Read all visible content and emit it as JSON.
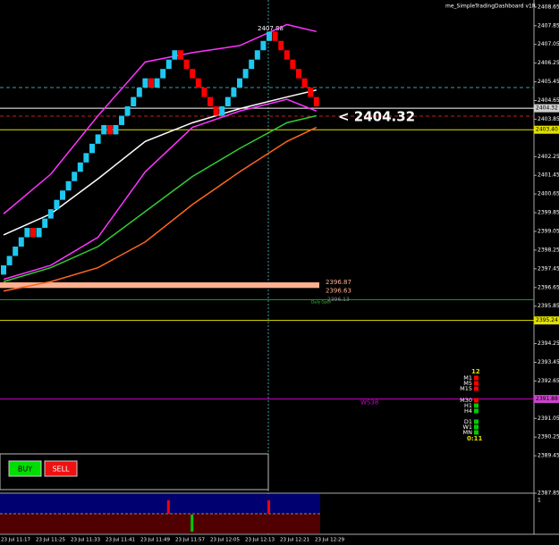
{
  "chart_data": {
    "type": "renko",
    "indicator_name": "me_SimpleTradingDashboard v1R",
    "peak_label": "2407.88",
    "big_price_label": "<  2404.32",
    "up_color": "#1ec8f0",
    "down_color": "#ff0000",
    "opens": [
      2397.2,
      2397.6,
      2398.0,
      2398.4,
      2398.8,
      2399.2,
      2398.8,
      2399.2,
      2399.6,
      2400.0,
      2400.4,
      2400.8,
      2401.2,
      2401.6,
      2402.0,
      2402.4,
      2402.8,
      2403.2,
      2403.6,
      2403.2,
      2403.6,
      2404.0,
      2404.4,
      2404.8,
      2405.2,
      2405.6,
      2405.2,
      2405.6,
      2406.0,
      2406.4,
      2406.8,
      2406.4,
      2406.0,
      2405.6,
      2405.2,
      2404.8,
      2404.4,
      2404.0,
      2404.4,
      2404.8,
      2405.2,
      2405.6,
      2406.0,
      2406.4,
      2406.8,
      2407.2,
      2407.6,
      2407.2,
      2406.8,
      2406.4,
      2406.0,
      2405.6,
      2405.2,
      2404.8
    ],
    "closes": [
      2397.6,
      2398.0,
      2398.4,
      2398.8,
      2399.2,
      2398.8,
      2399.2,
      2399.6,
      2400.0,
      2400.4,
      2400.8,
      2401.2,
      2401.6,
      2402.0,
      2402.4,
      2402.8,
      2403.2,
      2403.6,
      2403.2,
      2403.6,
      2404.0,
      2404.4,
      2404.8,
      2405.2,
      2405.6,
      2405.2,
      2405.6,
      2406.0,
      2406.4,
      2406.8,
      2406.4,
      2406.0,
      2405.6,
      2405.2,
      2404.8,
      2404.4,
      2404.0,
      2404.4,
      2404.8,
      2405.2,
      2405.6,
      2406.0,
      2406.4,
      2406.8,
      2407.2,
      2407.6,
      2407.2,
      2406.8,
      2406.4,
      2406.0,
      2405.6,
      2405.2,
      2404.8,
      2404.4
    ],
    "ma_index": [
      0,
      8,
      16,
      24,
      32,
      40,
      48,
      53
    ],
    "series": [
      {
        "color": "#ffffff",
        "values": [
          2398.9,
          2399.8,
          2401.3,
          2402.9,
          2403.7,
          2404.3,
          2404.8,
          2405.1
        ]
      },
      {
        "color": "#ff33ff",
        "values": [
          2399.8,
          2401.5,
          2404.0,
          2406.3,
          2406.7,
          2407.0,
          2407.9,
          2407.6
        ]
      },
      {
        "color": "#ff33ff",
        "values": [
          2397.0,
          2397.6,
          2398.8,
          2401.6,
          2403.5,
          2404.2,
          2404.7,
          2404.2
        ]
      },
      {
        "color": "#33cc33",
        "values": [
          2396.9,
          2397.5,
          2398.4,
          2399.9,
          2401.4,
          2402.6,
          2403.7,
          2404.0
        ]
      },
      {
        "color": "#ff6620",
        "values": [
          2396.5,
          2396.9,
          2397.5,
          2398.6,
          2400.2,
          2401.6,
          2402.9,
          2403.5
        ]
      }
    ],
    "ylim": [
      2387.85,
      2408.95
    ],
    "yticks": [
      2408.65,
      2407.85,
      2407.05,
      2406.25,
      2405.45,
      2404.65,
      2403.85,
      2402.25,
      2401.45,
      2400.65,
      2399.85,
      2399.05,
      2398.25,
      2397.45,
      2396.65,
      2395.85,
      2394.25,
      2393.45,
      2392.65,
      2391.05,
      2390.25,
      2389.45,
      2387.85
    ],
    "levels": [
      {
        "price": 2404.32,
        "color": "#ffffff",
        "badge": "#d0d0d0"
      },
      {
        "price": 2403.4,
        "price_label": "2403.40",
        "color": "#e0e000",
        "badge": "#e0e000"
      },
      {
        "price": 2395.24,
        "color": "#e0e000",
        "badge": "#e0e000"
      },
      {
        "price": 2391.88,
        "color": "#cc00cc",
        "badge": "#cc44cc",
        "name": "WS38"
      }
    ],
    "zone": {
      "top": 2396.87,
      "bottom": 2396.63,
      "color": "#ffb090"
    },
    "daily_open": {
      "price": 2396.13,
      "name": "Daily Open"
    },
    "dashboard": {
      "count": "12",
      "timer": "0:11",
      "rows": [
        {
          "name": "M1",
          "color": "#ff0000"
        },
        {
          "name": "M5",
          "color": "#ff0000"
        },
        {
          "name": "M15",
          "color": "#ff0000"
        },
        {
          "name": "M30",
          "color": "#ff0000"
        },
        {
          "name": "H1",
          "color": "#00cc00"
        },
        {
          "name": "H4",
          "color": "#00cc00"
        },
        {
          "name": "D1",
          "color": "#00cc00"
        },
        {
          "name": "W1",
          "color": "#00cc00"
        },
        {
          "name": "MN",
          "color": "#00cc00"
        }
      ]
    },
    "buttons": [
      "BUY",
      "SELL"
    ],
    "signals": {
      "index": [
        28,
        32,
        45
      ],
      "color": [
        "#ff0000",
        "#00cc00",
        "#ff0000"
      ]
    },
    "indicator_yticks": [
      1
    ],
    "time_labels": [
      "23 Jul 11:17",
      "23 Jul 11:25",
      "23 Jul 11:33",
      "23 Jul 11:41",
      "23 Jul 11:49",
      "23 Jul 11:57",
      "23 Jul 12:05",
      "23 Jul 12:13",
      "23 Jul 12:21",
      "23 Jul 12:29"
    ]
  }
}
